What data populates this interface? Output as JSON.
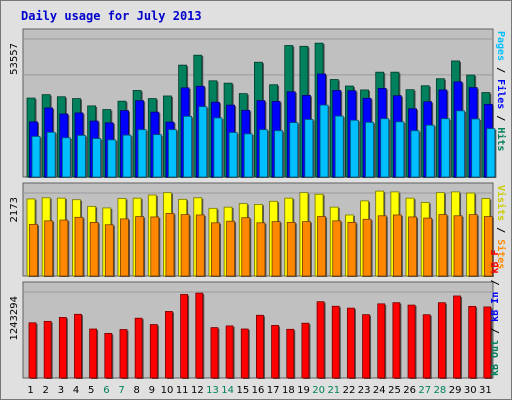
{
  "title": "Daily usage for July 2013",
  "chart_data": [
    {
      "type": "bar",
      "panel": "top",
      "max_label": "53557",
      "ylim": [
        0,
        53557
      ],
      "categories": [
        "1",
        "2",
        "3",
        "4",
        "5",
        "6",
        "7",
        "8",
        "9",
        "10",
        "11",
        "12",
        "13",
        "14",
        "15",
        "16",
        "17",
        "18",
        "19",
        "20",
        "21",
        "22",
        "23",
        "24",
        "25",
        "26",
        "27",
        "28",
        "29",
        "30",
        "31"
      ],
      "weekend_days": [
        "6",
        "7",
        "13",
        "14",
        "20",
        "21",
        "27",
        "28"
      ],
      "legend": [
        "Pages",
        "/",
        "Files",
        "/",
        "Hits"
      ],
      "series": [
        {
          "name": "Hits",
          "color": "#00805c",
          "values": [
            30200,
            31500,
            30700,
            30000,
            27200,
            25800,
            29000,
            33100,
            30000,
            31000,
            42800,
            46600,
            36800,
            35900,
            31900,
            43900,
            35300,
            50300,
            50000,
            51200,
            37300,
            34800,
            33300,
            40100,
            40100,
            33400,
            34900,
            37600,
            44400,
            39000,
            32300
          ]
        },
        {
          "name": "Files",
          "color": "#0000ff",
          "values": [
            21100,
            26400,
            24100,
            24500,
            21400,
            20700,
            25400,
            29200,
            24800,
            21000,
            34100,
            34700,
            28600,
            27500,
            25500,
            29200,
            28900,
            32600,
            31200,
            39400,
            33100,
            33000,
            30100,
            33900,
            31100,
            26100,
            28800,
            33300,
            36400,
            34200,
            27800
          ]
        },
        {
          "name": "Pages",
          "color": "#00bfff",
          "values": [
            15500,
            17100,
            15000,
            15900,
            14700,
            14200,
            16000,
            18100,
            16200,
            18100,
            23200,
            26900,
            22600,
            17000,
            16500,
            18100,
            17700,
            20800,
            22000,
            27500,
            23300,
            21700,
            20900,
            22300,
            21100,
            17700,
            19800,
            22300,
            25300,
            22200,
            18500
          ]
        }
      ]
    },
    {
      "type": "bar",
      "panel": "middle",
      "max_label": "2173",
      "ylim": [
        0,
        2173
      ],
      "categories": [
        "1",
        "2",
        "3",
        "4",
        "5",
        "6",
        "7",
        "8",
        "9",
        "10",
        "11",
        "12",
        "13",
        "14",
        "15",
        "16",
        "17",
        "18",
        "19",
        "20",
        "21",
        "22",
        "23",
        "24",
        "25",
        "26",
        "27",
        "28",
        "29",
        "30",
        "31"
      ],
      "legend": [
        "Visits",
        "/",
        "Sites"
      ],
      "series": [
        {
          "name": "Visits",
          "color": "#ffff00",
          "values": [
            1970,
            2000,
            1990,
            1950,
            1780,
            1740,
            1980,
            1990,
            2070,
            2130,
            1960,
            2000,
            1730,
            1760,
            1850,
            1830,
            1910,
            1990,
            2130,
            2090,
            1760,
            1560,
            1920,
            2170,
            2150,
            1990,
            1880,
            2130,
            2150,
            2120,
            1980
          ]
        },
        {
          "name": "Sites",
          "color": "#ff8800",
          "values": [
            1320,
            1410,
            1430,
            1500,
            1370,
            1310,
            1460,
            1520,
            1510,
            1600,
            1570,
            1560,
            1360,
            1400,
            1490,
            1360,
            1390,
            1370,
            1390,
            1520,
            1410,
            1370,
            1450,
            1540,
            1560,
            1510,
            1480,
            1570,
            1540,
            1570,
            1520
          ]
        }
      ]
    },
    {
      "type": "bar",
      "panel": "bottom",
      "max_label": "1243294",
      "ylim": [
        0,
        1243294
      ],
      "categories": [
        "1",
        "2",
        "3",
        "4",
        "5",
        "6",
        "7",
        "8",
        "9",
        "10",
        "11",
        "12",
        "13",
        "14",
        "15",
        "16",
        "17",
        "18",
        "19",
        "20",
        "21",
        "22",
        "23",
        "24",
        "25",
        "26",
        "27",
        "28",
        "29",
        "30",
        "31"
      ],
      "legend": [
        "kB F",
        "/",
        "kB In",
        "/",
        "kB Out"
      ],
      "series": [
        {
          "name": "kB In",
          "color": "#0000ff",
          "values": [
            0,
            0,
            0,
            0,
            0,
            0,
            0,
            0,
            0,
            0,
            0,
            0,
            0,
            0,
            0,
            0,
            0,
            0,
            0,
            0,
            0,
            0,
            0,
            0,
            0,
            0,
            0,
            0,
            0,
            0,
            0
          ]
        },
        {
          "name": "kB F",
          "color": "#ff0000",
          "values": [
            780000,
            800000,
            856000,
            900000,
            692000,
            630000,
            685000,
            845000,
            755000,
            940000,
            1180000,
            1199000,
            712000,
            736000,
            692000,
            886000,
            743000,
            688000,
            774000,
            1078000,
            1014000,
            987000,
            895000,
            1048000,
            1064000,
            1030000,
            894000,
            1064000,
            1159000,
            1012000,
            1004000
          ]
        }
      ]
    }
  ]
}
